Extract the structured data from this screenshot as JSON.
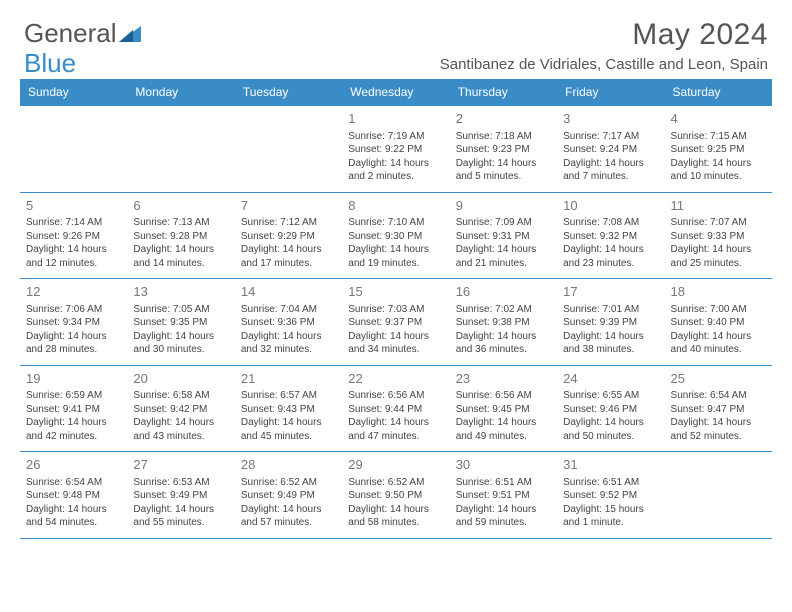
{
  "colors": {
    "header_bg": "#3a8cc7",
    "header_text": "#ffffff",
    "border": "#3a8cc7",
    "body_text": "#444444",
    "daynum": "#777777",
    "page_bg": "#ffffff",
    "title_color": "#555555",
    "logo_gray": "#555555",
    "logo_blue": "#3a8cc7"
  },
  "typography": {
    "month_title_fontsize": 30,
    "location_fontsize": 15,
    "day_header_fontsize": 12,
    "daynum_fontsize": 13,
    "info_fontsize": 10,
    "logo_fontsize": 26
  },
  "logo": {
    "part1": "General",
    "part2": "Blue"
  },
  "title": "May 2024",
  "location": "Santibanez de Vidriales, Castille and Leon, Spain",
  "day_headers": [
    "Sunday",
    "Monday",
    "Tuesday",
    "Wednesday",
    "Thursday",
    "Friday",
    "Saturday"
  ],
  "weeks": [
    [
      null,
      null,
      null,
      {
        "n": "1",
        "sr": "Sunrise: 7:19 AM",
        "ss": "Sunset: 9:22 PM",
        "dl1": "Daylight: 14 hours",
        "dl2": "and 2 minutes."
      },
      {
        "n": "2",
        "sr": "Sunrise: 7:18 AM",
        "ss": "Sunset: 9:23 PM",
        "dl1": "Daylight: 14 hours",
        "dl2": "and 5 minutes."
      },
      {
        "n": "3",
        "sr": "Sunrise: 7:17 AM",
        "ss": "Sunset: 9:24 PM",
        "dl1": "Daylight: 14 hours",
        "dl2": "and 7 minutes."
      },
      {
        "n": "4",
        "sr": "Sunrise: 7:15 AM",
        "ss": "Sunset: 9:25 PM",
        "dl1": "Daylight: 14 hours",
        "dl2": "and 10 minutes."
      }
    ],
    [
      {
        "n": "5",
        "sr": "Sunrise: 7:14 AM",
        "ss": "Sunset: 9:26 PM",
        "dl1": "Daylight: 14 hours",
        "dl2": "and 12 minutes."
      },
      {
        "n": "6",
        "sr": "Sunrise: 7:13 AM",
        "ss": "Sunset: 9:28 PM",
        "dl1": "Daylight: 14 hours",
        "dl2": "and 14 minutes."
      },
      {
        "n": "7",
        "sr": "Sunrise: 7:12 AM",
        "ss": "Sunset: 9:29 PM",
        "dl1": "Daylight: 14 hours",
        "dl2": "and 17 minutes."
      },
      {
        "n": "8",
        "sr": "Sunrise: 7:10 AM",
        "ss": "Sunset: 9:30 PM",
        "dl1": "Daylight: 14 hours",
        "dl2": "and 19 minutes."
      },
      {
        "n": "9",
        "sr": "Sunrise: 7:09 AM",
        "ss": "Sunset: 9:31 PM",
        "dl1": "Daylight: 14 hours",
        "dl2": "and 21 minutes."
      },
      {
        "n": "10",
        "sr": "Sunrise: 7:08 AM",
        "ss": "Sunset: 9:32 PM",
        "dl1": "Daylight: 14 hours",
        "dl2": "and 23 minutes."
      },
      {
        "n": "11",
        "sr": "Sunrise: 7:07 AM",
        "ss": "Sunset: 9:33 PM",
        "dl1": "Daylight: 14 hours",
        "dl2": "and 25 minutes."
      }
    ],
    [
      {
        "n": "12",
        "sr": "Sunrise: 7:06 AM",
        "ss": "Sunset: 9:34 PM",
        "dl1": "Daylight: 14 hours",
        "dl2": "and 28 minutes."
      },
      {
        "n": "13",
        "sr": "Sunrise: 7:05 AM",
        "ss": "Sunset: 9:35 PM",
        "dl1": "Daylight: 14 hours",
        "dl2": "and 30 minutes."
      },
      {
        "n": "14",
        "sr": "Sunrise: 7:04 AM",
        "ss": "Sunset: 9:36 PM",
        "dl1": "Daylight: 14 hours",
        "dl2": "and 32 minutes."
      },
      {
        "n": "15",
        "sr": "Sunrise: 7:03 AM",
        "ss": "Sunset: 9:37 PM",
        "dl1": "Daylight: 14 hours",
        "dl2": "and 34 minutes."
      },
      {
        "n": "16",
        "sr": "Sunrise: 7:02 AM",
        "ss": "Sunset: 9:38 PM",
        "dl1": "Daylight: 14 hours",
        "dl2": "and 36 minutes."
      },
      {
        "n": "17",
        "sr": "Sunrise: 7:01 AM",
        "ss": "Sunset: 9:39 PM",
        "dl1": "Daylight: 14 hours",
        "dl2": "and 38 minutes."
      },
      {
        "n": "18",
        "sr": "Sunrise: 7:00 AM",
        "ss": "Sunset: 9:40 PM",
        "dl1": "Daylight: 14 hours",
        "dl2": "and 40 minutes."
      }
    ],
    [
      {
        "n": "19",
        "sr": "Sunrise: 6:59 AM",
        "ss": "Sunset: 9:41 PM",
        "dl1": "Daylight: 14 hours",
        "dl2": "and 42 minutes."
      },
      {
        "n": "20",
        "sr": "Sunrise: 6:58 AM",
        "ss": "Sunset: 9:42 PM",
        "dl1": "Daylight: 14 hours",
        "dl2": "and 43 minutes."
      },
      {
        "n": "21",
        "sr": "Sunrise: 6:57 AM",
        "ss": "Sunset: 9:43 PM",
        "dl1": "Daylight: 14 hours",
        "dl2": "and 45 minutes."
      },
      {
        "n": "22",
        "sr": "Sunrise: 6:56 AM",
        "ss": "Sunset: 9:44 PM",
        "dl1": "Daylight: 14 hours",
        "dl2": "and 47 minutes."
      },
      {
        "n": "23",
        "sr": "Sunrise: 6:56 AM",
        "ss": "Sunset: 9:45 PM",
        "dl1": "Daylight: 14 hours",
        "dl2": "and 49 minutes."
      },
      {
        "n": "24",
        "sr": "Sunrise: 6:55 AM",
        "ss": "Sunset: 9:46 PM",
        "dl1": "Daylight: 14 hours",
        "dl2": "and 50 minutes."
      },
      {
        "n": "25",
        "sr": "Sunrise: 6:54 AM",
        "ss": "Sunset: 9:47 PM",
        "dl1": "Daylight: 14 hours",
        "dl2": "and 52 minutes."
      }
    ],
    [
      {
        "n": "26",
        "sr": "Sunrise: 6:54 AM",
        "ss": "Sunset: 9:48 PM",
        "dl1": "Daylight: 14 hours",
        "dl2": "and 54 minutes."
      },
      {
        "n": "27",
        "sr": "Sunrise: 6:53 AM",
        "ss": "Sunset: 9:49 PM",
        "dl1": "Daylight: 14 hours",
        "dl2": "and 55 minutes."
      },
      {
        "n": "28",
        "sr": "Sunrise: 6:52 AM",
        "ss": "Sunset: 9:49 PM",
        "dl1": "Daylight: 14 hours",
        "dl2": "and 57 minutes."
      },
      {
        "n": "29",
        "sr": "Sunrise: 6:52 AM",
        "ss": "Sunset: 9:50 PM",
        "dl1": "Daylight: 14 hours",
        "dl2": "and 58 minutes."
      },
      {
        "n": "30",
        "sr": "Sunrise: 6:51 AM",
        "ss": "Sunset: 9:51 PM",
        "dl1": "Daylight: 14 hours",
        "dl2": "and 59 minutes."
      },
      {
        "n": "31",
        "sr": "Sunrise: 6:51 AM",
        "ss": "Sunset: 9:52 PM",
        "dl1": "Daylight: 15 hours",
        "dl2": "and 1 minute."
      },
      null
    ]
  ]
}
